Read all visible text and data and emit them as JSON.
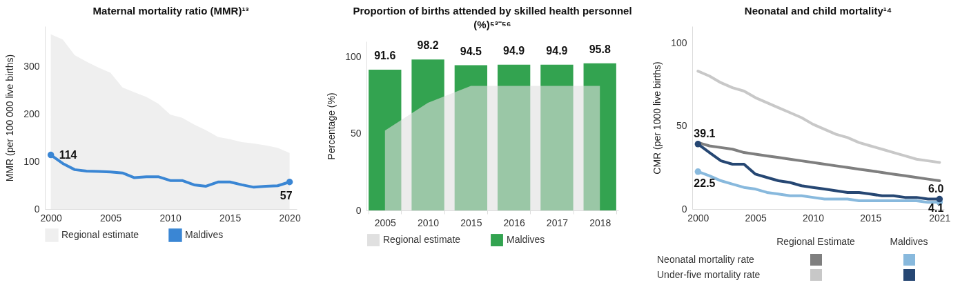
{
  "chart_data": [
    {
      "type": "line",
      "title": "Maternal mortality ratio (MMR)¹³",
      "ylabel": "MMR (per 100 000 live births)",
      "x": [
        2000,
        2001,
        2002,
        2003,
        2004,
        2005,
        2006,
        2007,
        2008,
        2009,
        2010,
        2011,
        2012,
        2013,
        2014,
        2015,
        2016,
        2017,
        2018,
        2019,
        2020
      ],
      "series": [
        {
          "name": "Regional estimate",
          "type": "area",
          "color": "#efefef",
          "values": [
            368,
            357,
            324,
            310,
            298,
            287,
            256,
            246,
            236,
            222,
            199,
            192,
            178,
            166,
            152,
            147,
            141,
            138,
            134,
            129,
            118
          ]
        },
        {
          "name": "Maldives",
          "color": "#3a86d4",
          "values": [
            114,
            96,
            83,
            80,
            79,
            78,
            76,
            66,
            68,
            68,
            60,
            60,
            51,
            48,
            57,
            57,
            51,
            46,
            48,
            49,
            57
          ],
          "value_labels": [
            "114",
            null,
            null,
            null,
            null,
            null,
            null,
            null,
            null,
            null,
            null,
            null,
            null,
            null,
            null,
            null,
            null,
            null,
            null,
            null,
            "57"
          ]
        }
      ],
      "xlim": [
        1999.5,
        2020.6
      ],
      "xticks": [
        2000,
        2005,
        2010,
        2015,
        2020
      ],
      "ylim": [
        0,
        385
      ],
      "yticks": [
        0,
        100,
        200,
        300
      ],
      "legend": "bottom"
    },
    {
      "type": "bar",
      "title": "Proportion of births attended by skilled health personnel (%)⁵³⁻⁵⁶",
      "ylabel": "Percentage (%)",
      "categories": [
        "2005",
        "2010",
        "2015",
        "2016",
        "2017",
        "2018"
      ],
      "series": [
        {
          "name": "Regional estimate",
          "type": "area",
          "color": "#e0e0e0",
          "values": [
            52,
            70,
            81,
            81,
            81,
            81
          ]
        },
        {
          "name": "Maldives",
          "color": "#33a350",
          "values": [
            91.6,
            98.2,
            94.5,
            94.9,
            94.9,
            95.8
          ],
          "value_labels": [
            "91.6",
            "98.2",
            "94.5",
            "94.9",
            "94.9",
            "95.8"
          ]
        }
      ],
      "ylim": [
        0,
        110
      ],
      "yticks": [
        0,
        50,
        100
      ],
      "legend": "bottom"
    },
    {
      "type": "line",
      "title": "Neonatal and child mortality¹⁴",
      "ylabel": "CMR (per 1000 live births)",
      "x": [
        2000,
        2001,
        2002,
        2003,
        2004,
        2005,
        2006,
        2007,
        2008,
        2009,
        2010,
        2011,
        2012,
        2013,
        2014,
        2015,
        2016,
        2017,
        2018,
        2019,
        2020,
        2021
      ],
      "series": [
        {
          "color": "#7f7f7f",
          "values": [
            40,
            38,
            37,
            36,
            34,
            33,
            32,
            31,
            30,
            29,
            28,
            27,
            26,
            25,
            24,
            23,
            22,
            21,
            20,
            19,
            18,
            17
          ]
        },
        {
          "color": "#c8c8c8",
          "values": [
            83,
            80,
            76,
            73,
            71,
            67,
            64,
            61,
            58,
            55,
            51,
            48,
            45,
            43,
            40,
            38,
            36,
            34,
            32,
            30,
            29,
            28
          ]
        },
        {
          "color": "#88b9dd",
          "values": [
            22.5,
            20,
            17,
            15,
            13,
            12,
            10,
            9,
            8,
            8,
            7,
            6,
            6,
            6,
            5,
            5,
            5,
            5,
            5,
            5,
            4,
            4.1
          ],
          "value_labels": [
            "22.5",
            null,
            null,
            null,
            null,
            null,
            null,
            null,
            null,
            null,
            null,
            null,
            null,
            null,
            null,
            null,
            null,
            null,
            null,
            null,
            null,
            "4.1"
          ]
        },
        {
          "color": "#264773",
          "values": [
            39.1,
            34,
            29,
            27,
            27,
            21,
            19,
            17,
            16,
            14,
            13,
            12,
            11,
            10,
            10,
            9,
            8,
            8,
            7,
            7,
            6,
            6.0
          ],
          "value_labels": [
            "39.1",
            null,
            null,
            null,
            null,
            null,
            null,
            null,
            null,
            null,
            null,
            null,
            null,
            null,
            null,
            null,
            null,
            null,
            null,
            null,
            null,
            "6.0"
          ]
        }
      ],
      "xlim": [
        1999.5,
        2021.4
      ],
      "xticks": [
        2000,
        2005,
        2010,
        2015,
        2021
      ],
      "ylim": [
        0,
        110
      ],
      "yticks": [
        0,
        50,
        100
      ],
      "annotations": [
        "Regional Estimate",
        "Maldives",
        "Neonatal mortality rate",
        "Under-five mortality rate"
      ]
    }
  ]
}
